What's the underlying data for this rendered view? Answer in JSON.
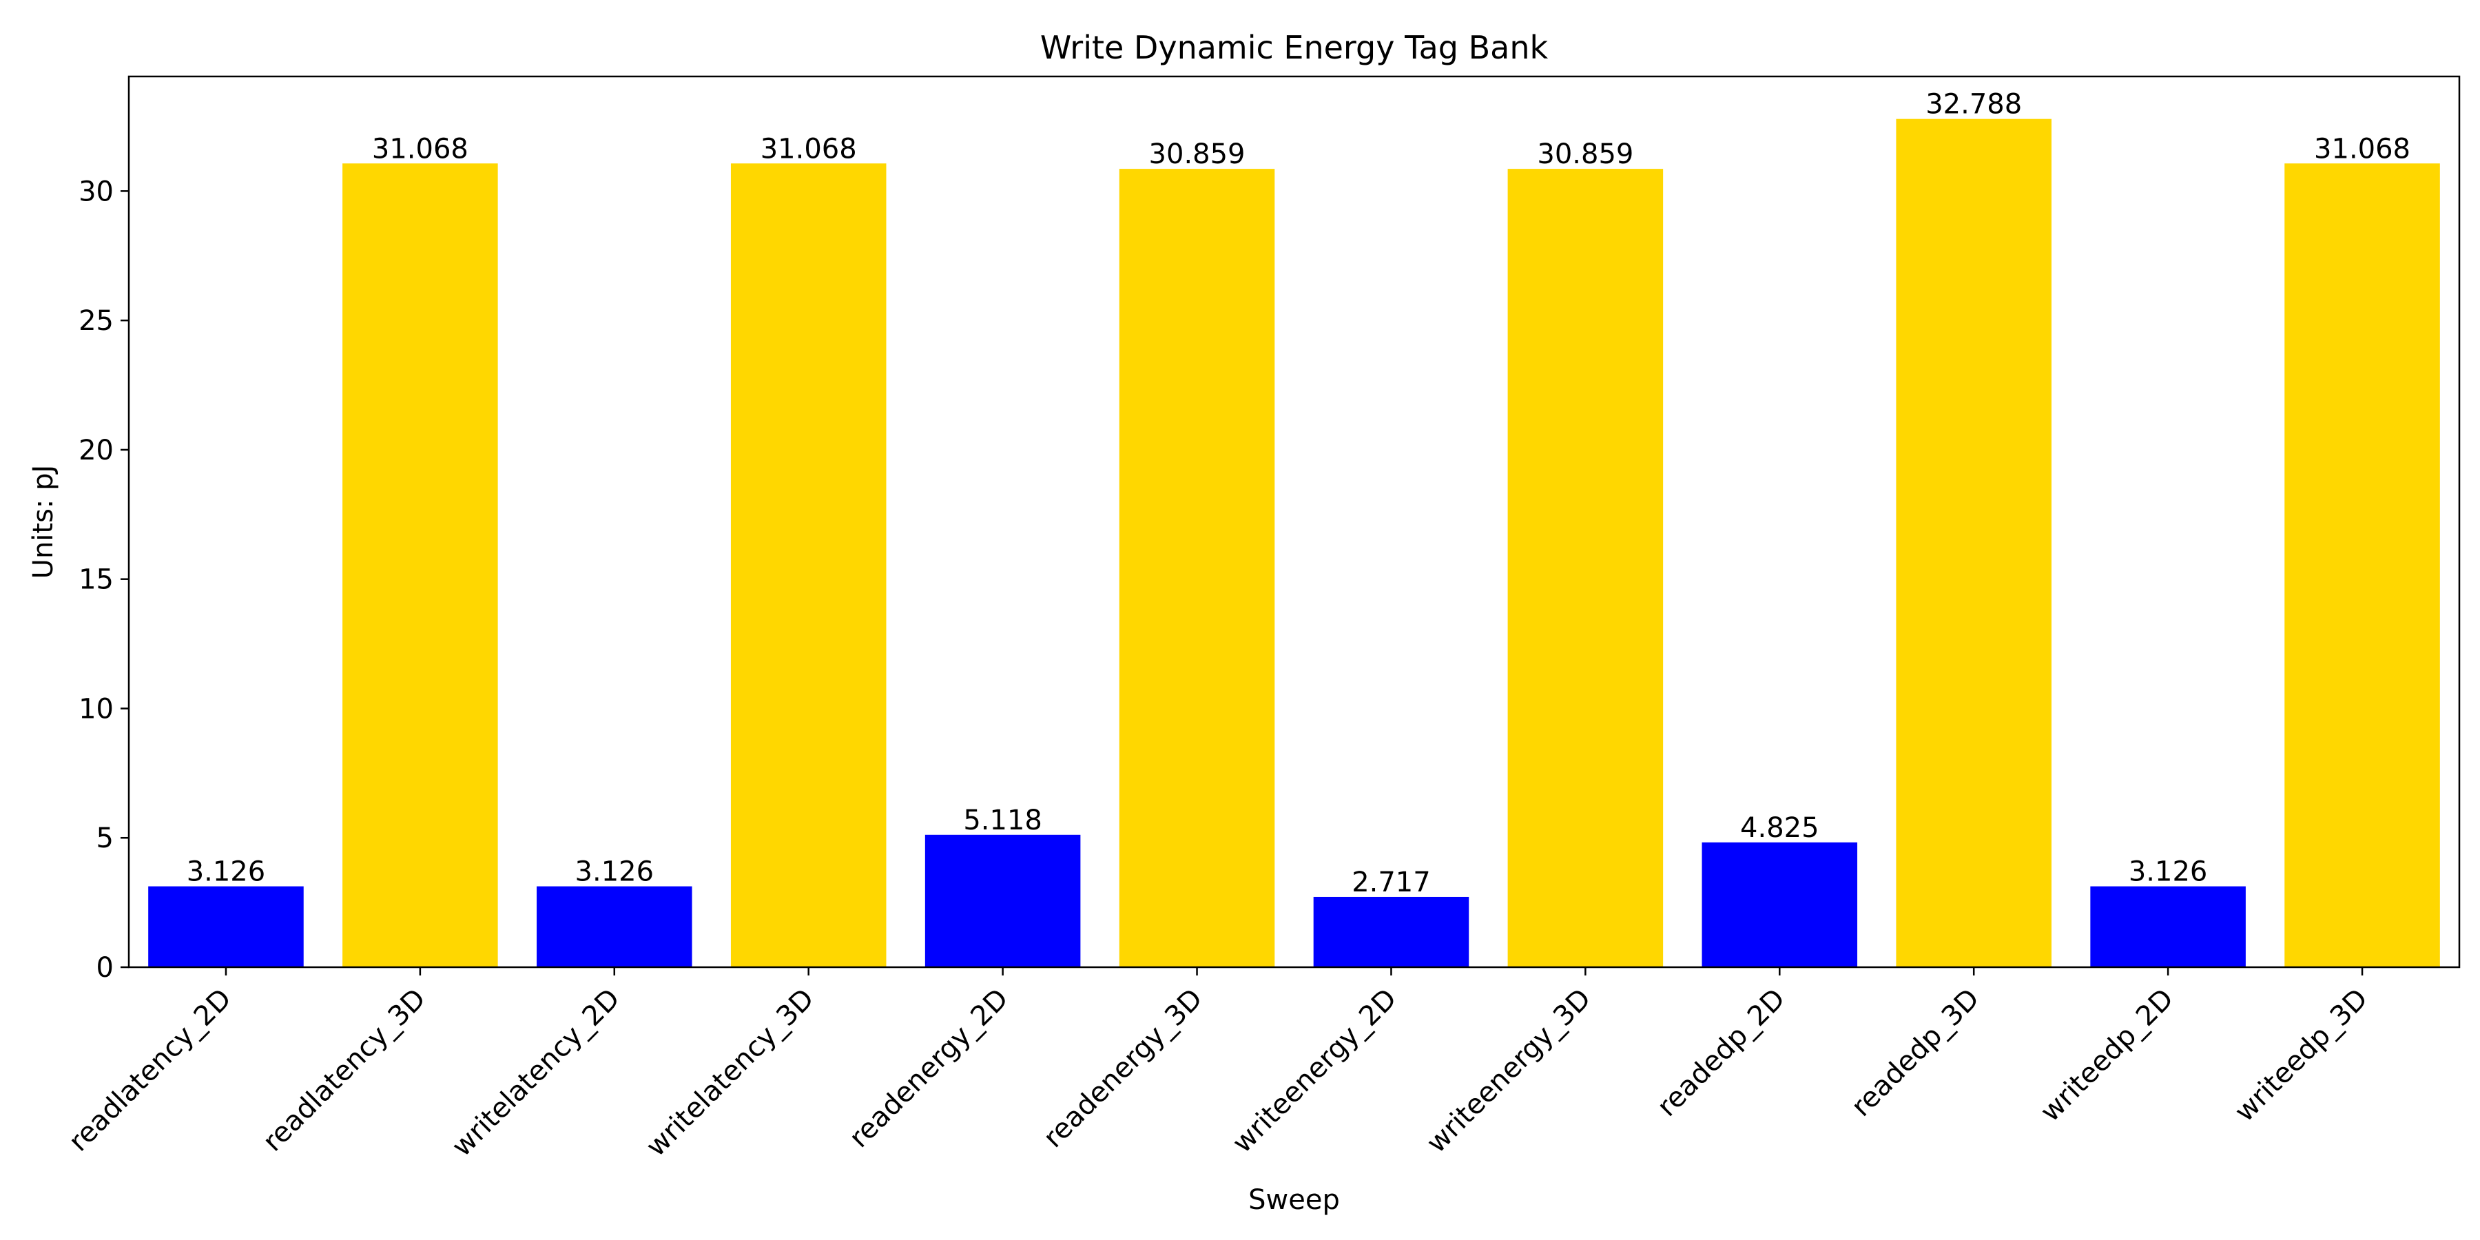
{
  "chart_data": {
    "type": "bar",
    "title": "Write Dynamic Energy Tag Bank",
    "xlabel": "Sweep",
    "ylabel": "Units: pJ",
    "categories": [
      "readlatency_2D",
      "readlatency_3D",
      "writelatency_2D",
      "writelatency_3D",
      "readenergy_2D",
      "readenergy_3D",
      "writeenergy_2D",
      "writeenergy_3D",
      "readedp_2D",
      "readedp_3D",
      "writeedp_2D",
      "writeedp_3D"
    ],
    "values": [
      3.126,
      31.068,
      3.126,
      31.068,
      5.118,
      30.859,
      2.717,
      30.859,
      4.825,
      32.788,
      3.126,
      31.068
    ],
    "value_labels": [
      "3.126",
      "31.068",
      "3.126",
      "31.068",
      "5.118",
      "30.859",
      "2.717",
      "30.859",
      "4.825",
      "32.788",
      "3.126",
      "31.068"
    ],
    "bar_colors": [
      "#0000ff",
      "#ffd700",
      "#0000ff",
      "#ffd700",
      "#0000ff",
      "#ffd700",
      "#0000ff",
      "#ffd700",
      "#0000ff",
      "#ffd700",
      "#0000ff",
      "#ffd700"
    ],
    "ylim": [
      0,
      34.43
    ],
    "yticks": [
      0,
      5,
      10,
      15,
      20,
      25,
      30
    ],
    "ytick_labels": [
      "0",
      "5",
      "10",
      "15",
      "20",
      "25",
      "30"
    ],
    "grid": false,
    "legend": "none"
  }
}
